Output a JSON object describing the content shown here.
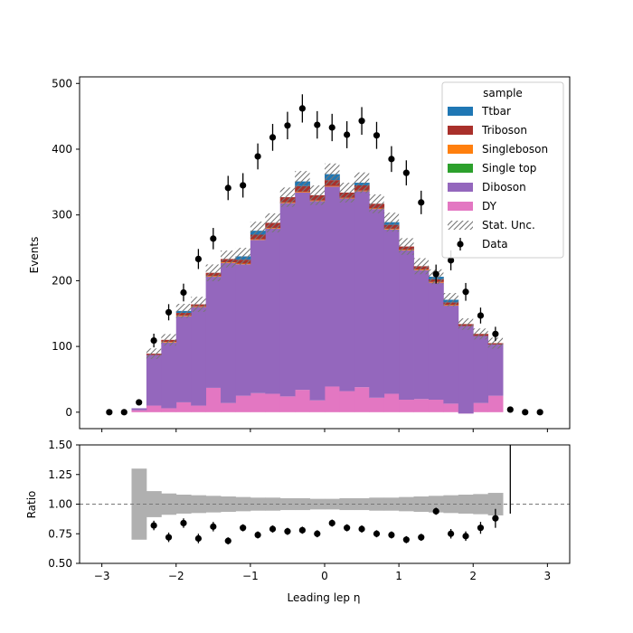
{
  "chart_data": [
    {
      "type": "bar",
      "stacked": true,
      "xlabel": "Leading lep η",
      "ylabel": "Events",
      "xlim": [
        -3.3,
        3.3
      ],
      "ylim": [
        -25,
        510
      ],
      "yticks": [
        0,
        100,
        200,
        300,
        400,
        500
      ],
      "xticks": [
        -3,
        -2,
        -1,
        0,
        1,
        2,
        3
      ],
      "legend_title": "sample",
      "legend_position": "top-right",
      "bin_edges": [
        -3.0,
        -2.8,
        -2.6,
        -2.4,
        -2.2,
        -2.0,
        -1.8,
        -1.6,
        -1.4,
        -1.2,
        -1.0,
        -0.8,
        -0.6,
        -0.4,
        -0.2,
        0.0,
        0.2,
        0.4,
        0.6,
        0.8,
        1.0,
        1.2,
        1.4,
        1.6,
        1.8,
        2.0,
        2.2,
        2.4,
        2.6,
        2.8,
        3.0
      ],
      "series": [
        {
          "name": "DY",
          "color": "#e377c2",
          "values": [
            0,
            0,
            3,
            10,
            6,
            15,
            10,
            37,
            14,
            25,
            29,
            28,
            24,
            34,
            18,
            39,
            32,
            38,
            22,
            28,
            19,
            20,
            19,
            13,
            -2,
            14,
            25,
            0,
            0,
            0
          ]
        },
        {
          "name": "Diboson",
          "color": "#9467bd",
          "values": [
            0,
            0,
            3,
            77,
            100,
            131,
            150,
            169,
            213,
            200,
            233,
            251,
            294,
            300,
            303,
            304,
            293,
            298,
            287,
            250,
            227,
            196,
            178,
            149,
            133,
            102,
            78,
            0,
            0,
            0
          ]
        },
        {
          "name": "Single top",
          "color": "#2ca02c",
          "values": [
            0,
            0,
            0,
            0,
            0,
            0,
            0,
            0,
            0,
            0,
            0,
            0,
            0,
            0,
            0,
            0,
            0,
            0,
            0,
            0,
            0,
            0,
            0,
            0,
            0,
            0,
            0,
            0,
            0,
            0
          ]
        },
        {
          "name": "Singleboson",
          "color": "#ff7f0e",
          "values": [
            0,
            0,
            0,
            0,
            1,
            1,
            1,
            1,
            1,
            1,
            1,
            1,
            1,
            1,
            1,
            1,
            1,
            1,
            1,
            1,
            1,
            1,
            1,
            1,
            0,
            0,
            0,
            0,
            0,
            0
          ]
        },
        {
          "name": "Triboson",
          "color": "#a9302b",
          "values": [
            0,
            0,
            0,
            2,
            3,
            4,
            3,
            5,
            5,
            6,
            7,
            8,
            8,
            9,
            8,
            9,
            8,
            8,
            7,
            6,
            5,
            5,
            4,
            4,
            3,
            3,
            2,
            0,
            0,
            0
          ]
        },
        {
          "name": "Ttbar",
          "color": "#1f77b4",
          "values": [
            0,
            0,
            0,
            0,
            0,
            3,
            0,
            0,
            0,
            5,
            6,
            0,
            0,
            7,
            0,
            9,
            0,
            4,
            0,
            4,
            0,
            0,
            4,
            4,
            0,
            0,
            0,
            0,
            0,
            0
          ]
        }
      ],
      "stat_unc": {
        "name": "Stat. Unc.",
        "relative": [
          0,
          0,
          0,
          0.09,
          0.08,
          0.07,
          0.07,
          0.06,
          0.055,
          0.055,
          0.05,
          0.05,
          0.045,
          0.045,
          0.045,
          0.045,
          0.045,
          0.045,
          0.045,
          0.05,
          0.05,
          0.055,
          0.055,
          0.06,
          0.065,
          0.07,
          0.08,
          0,
          0,
          0
        ]
      },
      "data": {
        "name": "Data",
        "x": [
          -2.9,
          -2.7,
          -2.5,
          -2.3,
          -2.1,
          -1.9,
          -1.7,
          -1.5,
          -1.3,
          -1.1,
          -0.9,
          -0.7,
          -0.5,
          -0.3,
          -0.1,
          0.1,
          0.3,
          0.5,
          0.7,
          0.9,
          1.1,
          1.3,
          1.5,
          1.7,
          1.9,
          2.1,
          2.3,
          2.5,
          2.7,
          2.9
        ],
        "y": [
          0,
          0,
          15,
          109,
          152,
          182,
          233,
          264,
          341,
          345,
          389,
          418,
          436,
          462,
          437,
          433,
          422,
          443,
          421,
          385,
          364,
          319,
          210,
          231,
          183,
          147,
          119,
          4,
          0,
          0
        ]
      }
    },
    {
      "type": "scatter",
      "xlabel": "Leading lep η",
      "ylabel": "Ratio",
      "xlim": [
        -3.3,
        3.3
      ],
      "ylim": [
        0.5,
        1.5
      ],
      "yticks": [
        "0.50",
        "0.75",
        "1.00",
        "1.25",
        "1.50"
      ],
      "xticks": [
        "−3",
        "−2",
        "−1",
        "0",
        "1",
        "2",
        "3"
      ],
      "reference_line": 1.0,
      "band_color": "#b0b0b0",
      "band_half_width": [
        0,
        0,
        0.3,
        0.11,
        0.09,
        0.08,
        0.075,
        0.07,
        0.065,
        0.06,
        0.055,
        0.055,
        0.05,
        0.05,
        0.045,
        0.045,
        0.05,
        0.05,
        0.055,
        0.055,
        0.06,
        0.065,
        0.07,
        0.075,
        0.08,
        0.085,
        0.095,
        0,
        0,
        0
      ],
      "x": [
        -2.3,
        -2.1,
        -1.9,
        -1.7,
        -1.5,
        -1.3,
        -1.1,
        -0.9,
        -0.7,
        -0.5,
        -0.3,
        -0.1,
        0.1,
        0.3,
        0.5,
        0.7,
        0.9,
        1.1,
        1.3,
        1.5,
        1.7,
        1.9,
        2.1,
        2.3
      ],
      "values": [
        0.82,
        0.72,
        0.84,
        0.71,
        0.81,
        0.69,
        0.8,
        0.74,
        0.79,
        0.77,
        0.78,
        0.75,
        0.84,
        0.8,
        0.79,
        0.75,
        0.74,
        0.7,
        0.72,
        0.94,
        0.75,
        0.73,
        0.8,
        0.88
      ],
      "errors": [
        0.04,
        0.04,
        0.04,
        0.04,
        0.04,
        0.03,
        0.03,
        0.03,
        0.03,
        0.03,
        0.03,
        0.03,
        0.03,
        0.03,
        0.03,
        0.03,
        0.03,
        0.03,
        0.03,
        0.03,
        0.04,
        0.04,
        0.05,
        0.08
      ],
      "outlier_bar": {
        "x": 2.5,
        "ylow": 0.92,
        "yhigh": 1.5
      }
    }
  ]
}
